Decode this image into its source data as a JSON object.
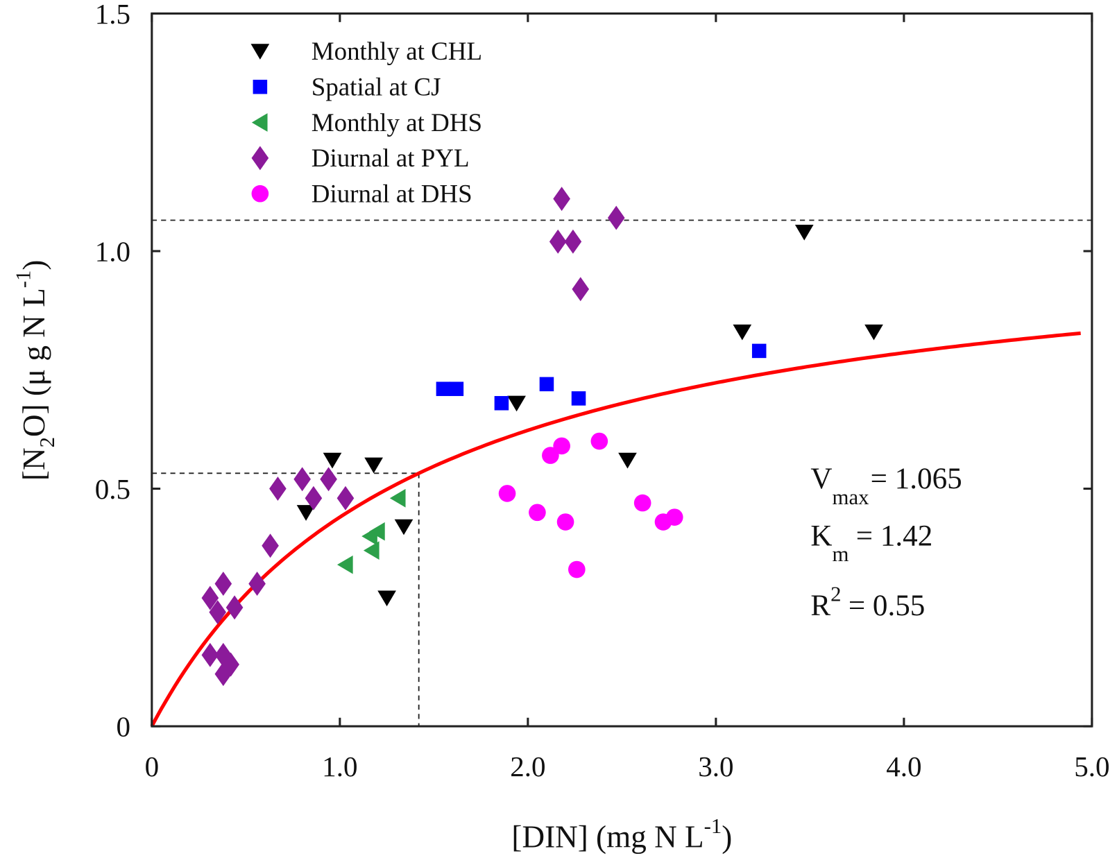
{
  "chart_data": {
    "type": "scatter",
    "xlabel": {
      "main": "[DIN] (mg N L",
      "sup": "-1",
      "close": ")"
    },
    "ylabel": {
      "open": "[N",
      "sub": "2",
      "mid": "O] (μ g N L",
      "sup": "-1",
      "close": ")"
    },
    "xlim": [
      0,
      5.0
    ],
    "ylim": [
      0,
      1.5
    ],
    "xticks": [
      0,
      1.0,
      2.0,
      3.0,
      4.0,
      5.0
    ],
    "xtick_labels": [
      "0",
      "1.0",
      "2.0",
      "3.0",
      "4.0",
      "5.0"
    ],
    "yticks": [
      0,
      0.5,
      1.0,
      1.5
    ],
    "ytick_labels": [
      "0",
      "0.5",
      "1.0",
      "1.5"
    ],
    "grid": false,
    "legend_placement": "top-left",
    "series": [
      {
        "name": "Monthly at CHL",
        "marker": "triangle-down",
        "color": "#000000",
        "points": [
          [
            0.96,
            0.56
          ],
          [
            1.18,
            0.55
          ],
          [
            0.82,
            0.45
          ],
          [
            1.34,
            0.42
          ],
          [
            1.25,
            0.27
          ],
          [
            1.94,
            0.68
          ],
          [
            2.53,
            0.56
          ],
          [
            3.14,
            0.83
          ],
          [
            3.47,
            1.04
          ],
          [
            3.84,
            0.83
          ]
        ]
      },
      {
        "name": "Spatial at CJ",
        "marker": "square",
        "color": "#0000ff",
        "points": [
          [
            1.55,
            0.71
          ],
          [
            1.62,
            0.71
          ],
          [
            1.86,
            0.68
          ],
          [
            2.1,
            0.72
          ],
          [
            2.27,
            0.69
          ],
          [
            3.23,
            0.79
          ]
        ]
      },
      {
        "name": "Monthly at DHS",
        "marker": "triangle-left",
        "color": "#2ca04a",
        "points": [
          [
            1.31,
            0.48
          ],
          [
            1.16,
            0.4
          ],
          [
            1.2,
            0.41
          ],
          [
            1.17,
            0.37
          ],
          [
            1.03,
            0.34
          ]
        ]
      },
      {
        "name": "Diurnal at PYL",
        "marker": "diamond",
        "color": "#8b1a9a",
        "points": [
          [
            2.18,
            1.11
          ],
          [
            2.47,
            1.07
          ],
          [
            2.16,
            1.02
          ],
          [
            2.24,
            1.02
          ],
          [
            2.28,
            0.92
          ],
          [
            0.8,
            0.52
          ],
          [
            0.94,
            0.52
          ],
          [
            0.67,
            0.5
          ],
          [
            0.86,
            0.48
          ],
          [
            1.03,
            0.48
          ],
          [
            0.63,
            0.38
          ],
          [
            0.56,
            0.3
          ],
          [
            0.38,
            0.3
          ],
          [
            0.31,
            0.27
          ],
          [
            0.35,
            0.24
          ],
          [
            0.44,
            0.25
          ],
          [
            0.31,
            0.15
          ],
          [
            0.38,
            0.15
          ],
          [
            0.42,
            0.13
          ],
          [
            0.38,
            0.11
          ]
        ]
      },
      {
        "name": "Diurnal at DHS",
        "marker": "circle",
        "color": "#ff00ff",
        "points": [
          [
            2.38,
            0.6
          ],
          [
            2.18,
            0.59
          ],
          [
            2.12,
            0.57
          ],
          [
            1.89,
            0.49
          ],
          [
            2.61,
            0.47
          ],
          [
            2.05,
            0.45
          ],
          [
            2.2,
            0.43
          ],
          [
            2.78,
            0.44
          ],
          [
            2.72,
            0.43
          ],
          [
            2.26,
            0.33
          ]
        ]
      }
    ],
    "fit": {
      "model": "Michaelis-Menten",
      "vmax": 1.065,
      "km": 1.42,
      "r2": 0.55,
      "color": "#ff0000"
    },
    "reference_lines": {
      "vmax_line": 1.065,
      "half_vmax": 0.5325,
      "km_line": 1.42,
      "style": "dashed"
    },
    "annotations": {
      "vmax": {
        "main": "V",
        "sub": "max",
        "rest": "= 1.065"
      },
      "km": {
        "main": "K",
        "sub": "m",
        "rest": "= 1.42"
      },
      "r2": {
        "main": "R",
        "sup": "2",
        "rest": "= 0.55"
      }
    }
  }
}
